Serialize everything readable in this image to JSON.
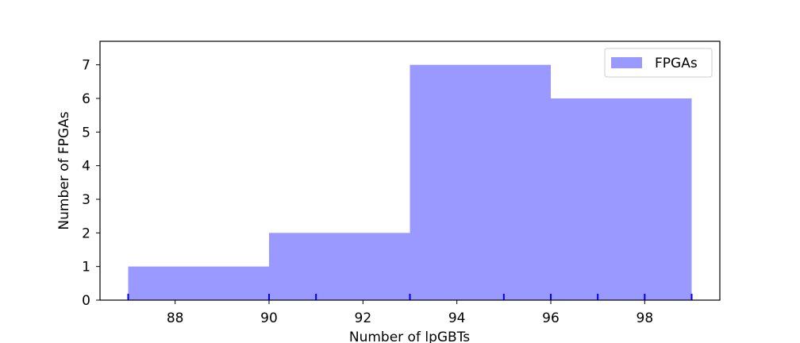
{
  "chart_data": {
    "type": "bar",
    "title": "",
    "xlabel": "Number of lpGBTs",
    "ylabel": "Number of FPGAs",
    "xlim": [
      86.4,
      99.6
    ],
    "ylim": [
      0,
      7.7
    ],
    "xticks": [
      88,
      90,
      92,
      94,
      96,
      98
    ],
    "yticks": [
      0,
      1,
      2,
      3,
      4,
      5,
      6,
      7
    ],
    "bins": [
      {
        "start": 87,
        "end": 90,
        "value": 1
      },
      {
        "start": 90,
        "end": 93,
        "value": 2
      },
      {
        "start": 93,
        "end": 96,
        "value": 7
      },
      {
        "start": 96,
        "end": 99,
        "value": 6
      }
    ],
    "rug": [
      87,
      90,
      91,
      93,
      95,
      96,
      97,
      98,
      99
    ],
    "series": [
      {
        "name": "FPGAs",
        "color": "#9999ff"
      }
    ],
    "rug_color": "#0000ff",
    "legend": "top-right",
    "grid": false
  }
}
